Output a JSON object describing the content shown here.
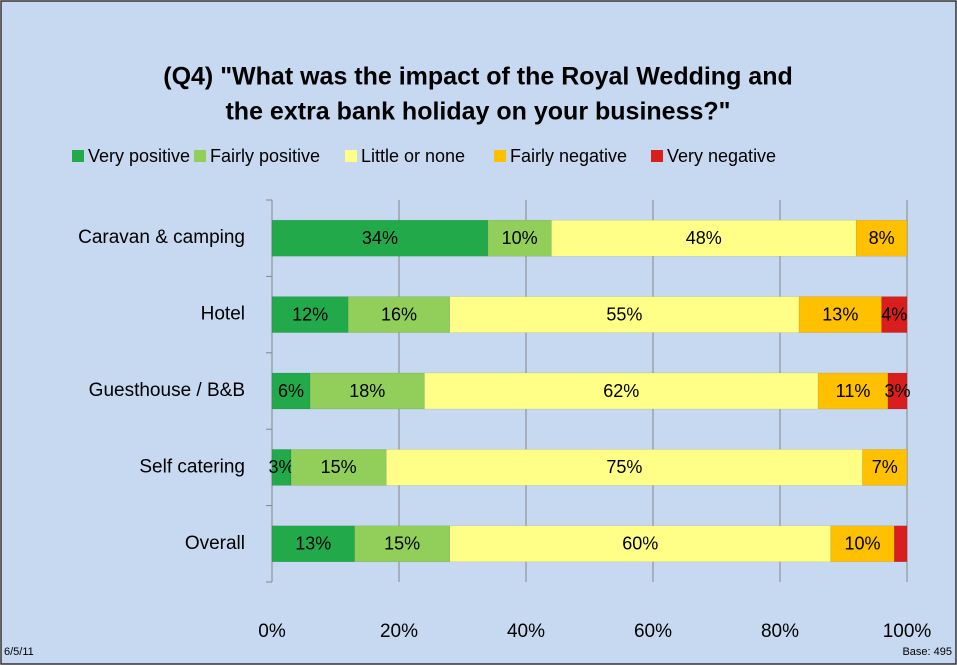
{
  "chart_data": {
    "type": "bar",
    "orientation": "horizontal",
    "stacked": true,
    "title": [
      "(Q4) \"What was the impact of the Royal Wedding and",
      "the extra bank holiday on your business?\""
    ],
    "categories": [
      "Caravan & camping",
      "Hotel",
      "Guesthouse / B&B",
      "Self catering",
      "Overall"
    ],
    "series": [
      {
        "name": "Very positive",
        "color": "#22aa4a",
        "values": [
          34,
          12,
          6,
          3,
          13
        ],
        "value_labels": [
          "34%",
          "12%",
          "6%",
          "3%",
          "13%"
        ]
      },
      {
        "name": "Fairly positive",
        "color": "#92cf5a",
        "values": [
          10,
          16,
          18,
          15,
          15
        ],
        "value_labels": [
          "10%",
          "16%",
          "18%",
          "15%",
          "15%"
        ]
      },
      {
        "name": "Little or none",
        "color": "#ffff88",
        "values": [
          48,
          55,
          62,
          75,
          60
        ],
        "value_labels": [
          "48%",
          "55%",
          "62%",
          "75%",
          "60%"
        ]
      },
      {
        "name": "Fairly negative",
        "color": "#ffc000",
        "values": [
          8,
          13,
          11,
          7,
          10
        ],
        "value_labels": [
          "8%",
          "13%",
          "11%",
          "7%",
          "10%"
        ]
      },
      {
        "name": "Very negative",
        "color": "#d91e1e",
        "values": [
          null,
          4,
          3,
          null,
          2
        ],
        "value_labels": [
          null,
          "4%",
          "3%",
          null,
          null
        ]
      }
    ],
    "xlim": [
      0,
      100
    ],
    "xticks": [
      {
        "value": 0,
        "label": "0%"
      },
      {
        "value": 20,
        "label": "20%"
      },
      {
        "value": 40,
        "label": "40%"
      },
      {
        "value": 60,
        "label": "60%"
      },
      {
        "value": 80,
        "label": "80%"
      },
      {
        "value": 100,
        "label": "100%"
      }
    ],
    "grid": true,
    "legend": "top"
  },
  "footer": {
    "date": "6/5/11",
    "base": "Base: 495"
  }
}
